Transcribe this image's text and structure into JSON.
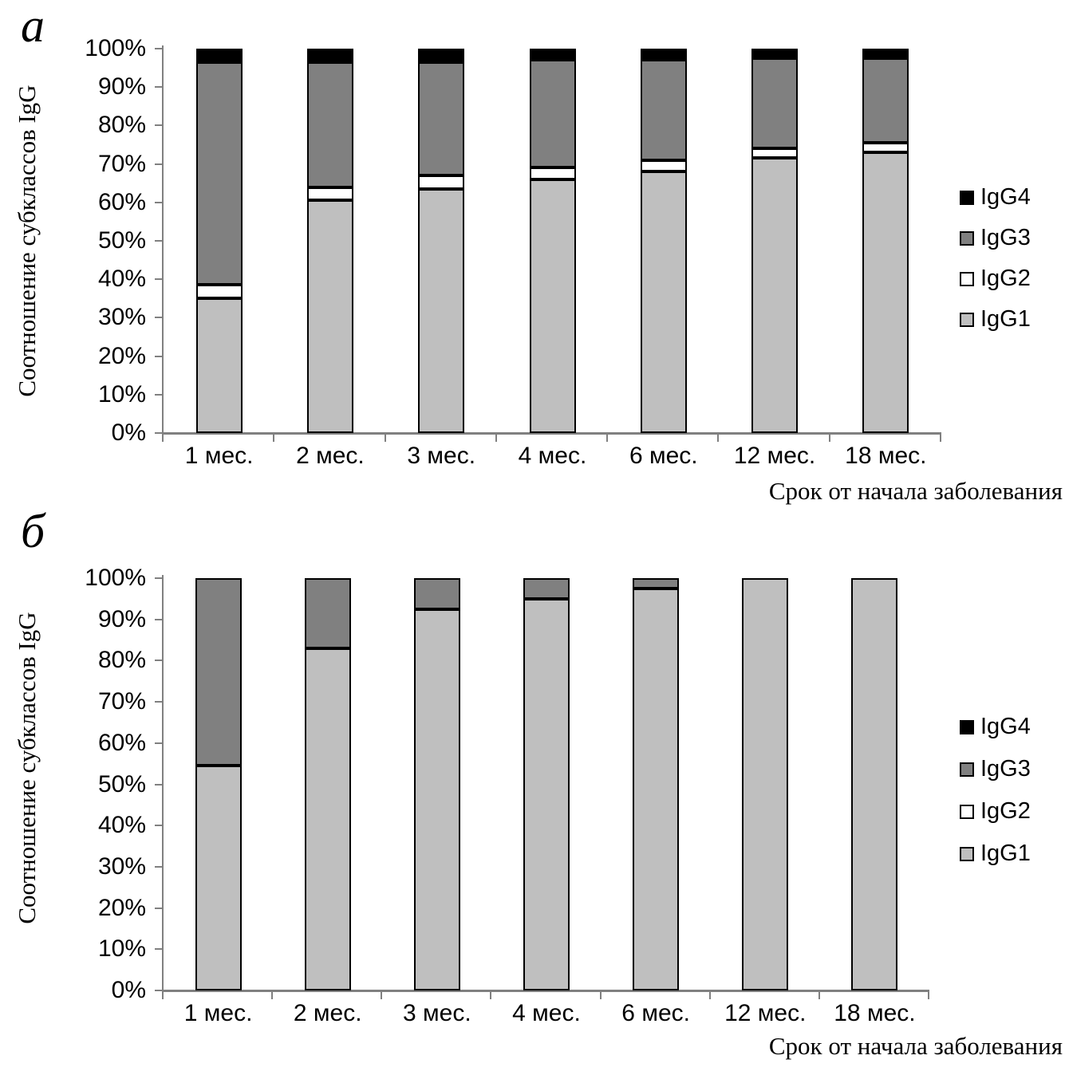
{
  "chart_data": [
    {
      "type": "bar",
      "variant": "stacked-100-percent",
      "panel_label": "а",
      "ylabel": "Соотношение субклассов IgG",
      "xlabel": "Срок от начала заболевания",
      "categories": [
        "1 мес.",
        "2 мес.",
        "3 мес.",
        "4 мес.",
        "6 мес.",
        "12 мес.",
        "18 мес."
      ],
      "series": [
        {
          "name": "IgG1",
          "color": "#bfbfbf",
          "values": [
            35,
            60.5,
            63.5,
            66,
            68,
            71.5,
            73
          ]
        },
        {
          "name": "IgG2",
          "color": "#ffffff",
          "values": [
            3.5,
            3.5,
            3.5,
            3,
            3,
            2.5,
            2.5
          ]
        },
        {
          "name": "IgG3",
          "color": "#808080",
          "values": [
            58,
            32.5,
            29.5,
            28,
            26,
            23.5,
            22
          ]
        },
        {
          "name": "IgG4",
          "color": "#000000",
          "values": [
            3.5,
            3.5,
            3.5,
            3,
            3,
            2.5,
            2.5
          ]
        }
      ],
      "ylim": [
        0,
        100
      ],
      "ytick_step": 10,
      "ytick_labels": [
        "0%",
        "10%",
        "20%",
        "30%",
        "40%",
        "50%",
        "60%",
        "70%",
        "80%",
        "90%",
        "100%"
      ],
      "grid": false,
      "legend_position": "right",
      "legend": [
        {
          "label": "IgG4",
          "color": "#000000"
        },
        {
          "label": "IgG3",
          "color": "#808080"
        },
        {
          "label": "IgG2",
          "color": "#ffffff"
        },
        {
          "label": "IgG1",
          "color": "#bfbfbf"
        }
      ]
    },
    {
      "type": "bar",
      "variant": "stacked-100-percent",
      "panel_label": "б",
      "ylabel": "Соотношение субклассов IgG",
      "xlabel": "Срок от начала заболевания",
      "categories": [
        "1 мес.",
        "2 мес.",
        "3 мес.",
        "4 мес.",
        "6 мес.",
        "12 мес.",
        "18 мес."
      ],
      "series": [
        {
          "name": "IgG1",
          "color": "#bfbfbf",
          "values": [
            54.5,
            83,
            92.5,
            95,
            97.5,
            100,
            100
          ]
        },
        {
          "name": "IgG2",
          "color": "#ffffff",
          "values": [
            0,
            0,
            0,
            0,
            0,
            0,
            0
          ]
        },
        {
          "name": "IgG3",
          "color": "#808080",
          "values": [
            45.5,
            17,
            7.5,
            5,
            2.5,
            0,
            0
          ]
        },
        {
          "name": "IgG4",
          "color": "#000000",
          "values": [
            0,
            0,
            0,
            0,
            0,
            0,
            0
          ]
        }
      ],
      "ylim": [
        0,
        100
      ],
      "ytick_step": 10,
      "ytick_labels": [
        "0%",
        "10%",
        "20%",
        "30%",
        "40%",
        "50%",
        "60%",
        "70%",
        "80%",
        "90%",
        "100%"
      ],
      "grid": false,
      "legend_position": "right",
      "legend": [
        {
          "label": "IgG4",
          "color": "#000000"
        },
        {
          "label": "IgG3",
          "color": "#808080"
        },
        {
          "label": "IgG2",
          "color": "#ffffff"
        },
        {
          "label": "IgG1",
          "color": "#bfbfbf"
        }
      ]
    }
  ],
  "colors": {
    "axis": "#808080",
    "bar_border": "#000000",
    "text": "#000000"
  }
}
